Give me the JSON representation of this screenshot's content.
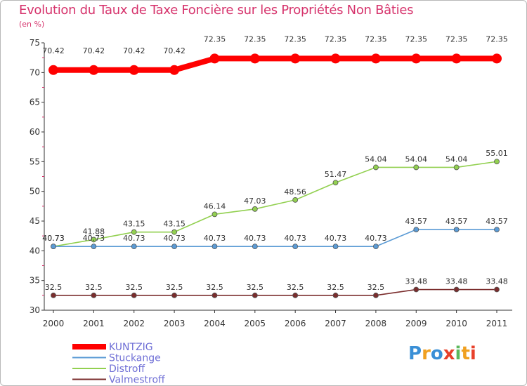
{
  "chart_data": {
    "type": "line",
    "title": "Evolution du Taux de Taxe Foncière sur les Propriétés Non Bâties",
    "subtitle": "(en %)",
    "xlabel": "",
    "ylabel": "",
    "categories": [
      "2000",
      "2001",
      "2002",
      "2003",
      "2004",
      "2005",
      "2006",
      "2007",
      "2008",
      "2009",
      "2010",
      "2011"
    ],
    "ylim": [
      30,
      75
    ],
    "yticks": [
      "30",
      "35",
      "40",
      "45",
      "50",
      "55",
      "60",
      "65",
      "70",
      "75"
    ],
    "grid": false,
    "legend_position": "bottom-left",
    "series": [
      {
        "name": "KUNTZIG",
        "color": "#ff0000",
        "values": [
          70.42,
          70.42,
          70.42,
          70.42,
          72.35,
          72.35,
          72.35,
          72.35,
          72.35,
          72.35,
          72.35,
          72.35
        ],
        "labels": [
          "70.42",
          "70.42",
          "70.42",
          "70.42",
          "72.35",
          "72.35",
          "72.35",
          "72.35",
          "72.35",
          "72.35",
          "72.35",
          "72.35"
        ]
      },
      {
        "name": "Stuckange",
        "color": "#5b9bd5",
        "values": [
          40.73,
          40.73,
          40.73,
          40.73,
          40.73,
          40.73,
          40.73,
          40.73,
          40.73,
          43.57,
          43.57,
          43.57
        ],
        "labels": [
          "40.73",
          "40.73",
          "40.73",
          "40.73",
          "40.73",
          "40.73",
          "40.73",
          "40.73",
          "40.73",
          "43.57",
          "43.57",
          "43.57"
        ]
      },
      {
        "name": "Distroff",
        "color": "#92d050",
        "values": [
          40.73,
          41.88,
          43.15,
          43.15,
          46.14,
          47.03,
          48.56,
          51.47,
          54.04,
          54.04,
          54.04,
          55.01
        ],
        "labels": [
          "40.73",
          "41.88",
          "43.15",
          "43.15",
          "46.14",
          "47.03",
          "48.56",
          "51.47",
          "54.04",
          "54.04",
          "54.04",
          "55.01"
        ]
      },
      {
        "name": "Valmestroff",
        "color": "#7b2d2d",
        "values": [
          32.5,
          32.5,
          32.5,
          32.5,
          32.5,
          32.5,
          32.5,
          32.5,
          32.5,
          33.48,
          33.48,
          33.48
        ],
        "labels": [
          "32.5",
          "32.5",
          "32.5",
          "32.5",
          "32.5",
          "32.5",
          "32.5",
          "32.5",
          "32.5",
          "33.48",
          "33.48",
          "33.48"
        ]
      }
    ]
  },
  "logo": {
    "text": "Proxiti",
    "letters": [
      {
        "ch": "P",
        "color": "#3a8fd6"
      },
      {
        "ch": "r",
        "color": "#f0a020"
      },
      {
        "ch": "o",
        "color": "#3a8fd6"
      },
      {
        "ch": "x",
        "color": "#e8402a"
      },
      {
        "ch": "i",
        "color": "#5cb85c"
      },
      {
        "ch": "t",
        "color": "#f0a020"
      },
      {
        "ch": "i",
        "color": "#e8402a"
      }
    ]
  }
}
